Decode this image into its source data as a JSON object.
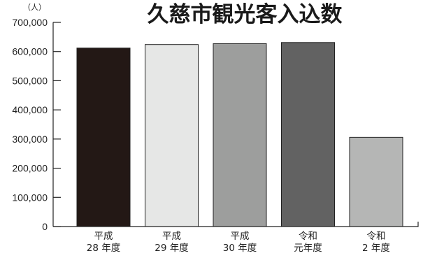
{
  "chart_data": {
    "type": "bar",
    "title": "久慈市観光客入込数",
    "y_unit": "（人）",
    "ylim": [
      0,
      700000
    ],
    "yticks": [
      "0",
      "100,000",
      "200,000",
      "300,000",
      "400,000",
      "500,000",
      "600,000",
      "700,000"
    ],
    "ytick_values": [
      0,
      100000,
      200000,
      300000,
      400000,
      500000,
      600000,
      700000
    ],
    "categories": [
      [
        "平成",
        "28 年度"
      ],
      [
        "平成",
        "29 年度"
      ],
      [
        "平成",
        "30 年度"
      ],
      [
        "令和",
        "元年度"
      ],
      [
        "令和",
        "2 年度"
      ]
    ],
    "values": [
      612000,
      624000,
      627000,
      631000,
      306000
    ],
    "bar_colors": [
      "#231815",
      "#e6e7e6",
      "#9d9e9d",
      "#626262",
      "#b5b6b5"
    ],
    "grid": false,
    "legend": "none"
  }
}
